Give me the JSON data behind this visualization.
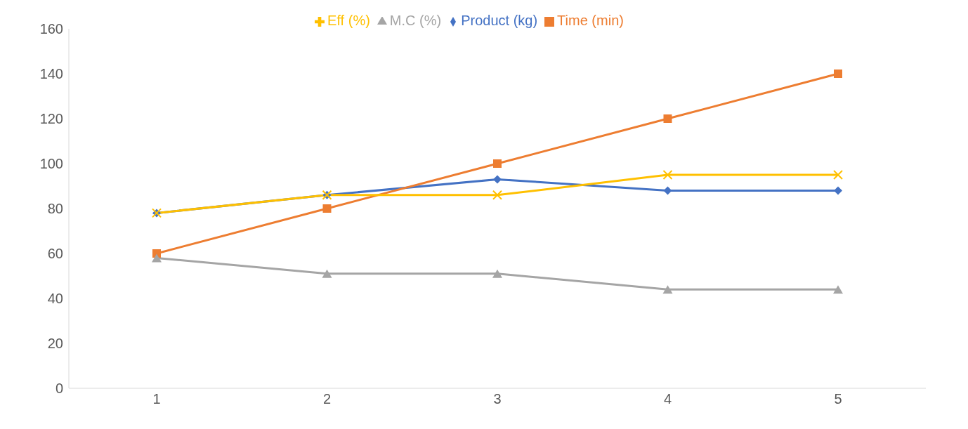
{
  "chart_data": {
    "type": "line",
    "categories": [
      "1",
      "2",
      "3",
      "4",
      "5"
    ],
    "series": [
      {
        "name": "Product (kg)",
        "color": "#4472c4",
        "marker": "diamond",
        "values": [
          78,
          86,
          93,
          88,
          88
        ]
      },
      {
        "name": "Time (min)",
        "color": "#ed7d31",
        "marker": "square",
        "values": [
          60,
          80,
          100,
          120,
          140
        ]
      },
      {
        "name": "M.C (%)",
        "color": "#a5a5a5",
        "marker": "triangle",
        "values": [
          58,
          51,
          51,
          44,
          44
        ]
      },
      {
        "name": "Eff (%)",
        "color": "#ffc000",
        "marker": "cross",
        "values": [
          78,
          86,
          86,
          95,
          95
        ]
      }
    ],
    "ylim": [
      0,
      160
    ],
    "yticks": [
      0,
      20,
      40,
      60,
      80,
      100,
      120,
      140,
      160
    ],
    "grid": false,
    "legend": "top"
  }
}
